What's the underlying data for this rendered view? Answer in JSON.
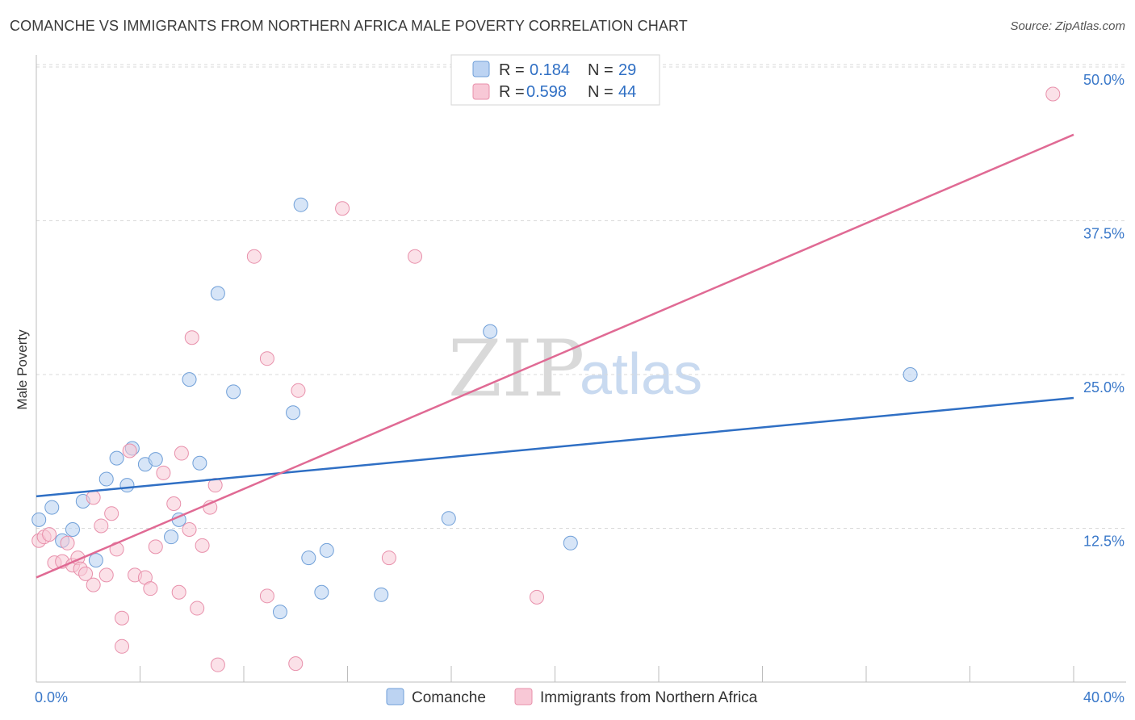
{
  "title": "COMANCHE VS IMMIGRANTS FROM NORTHERN AFRICA MALE POVERTY CORRELATION CHART",
  "source": "Source: ZipAtlas.com",
  "watermark": {
    "zip": "ZIP",
    "atlas": "atlas"
  },
  "colors": {
    "blue_fill": "#bcd3f2",
    "blue_stroke": "#6f9fd8",
    "blue_line": "#2f6fc4",
    "pink_fill": "#f8c8d6",
    "pink_stroke": "#e890ab",
    "pink_line": "#e06a94",
    "grid": "#d9d9d9",
    "tick_label": "#3a78c9"
  },
  "legend": {
    "rows": [
      {
        "series": "Comanche",
        "r_label": "R =",
        "r_value": "0.184",
        "n_label": "N =",
        "n_value": "29"
      },
      {
        "series": "Immigrants from Northern Africa",
        "r_label": "R =",
        "r_value": "0.598",
        "n_label": "N =",
        "n_value": "44"
      }
    ]
  },
  "chart_data": {
    "type": "scatter",
    "title": "COMANCHE VS IMMIGRANTS FROM NORTHERN AFRICA MALE POVERTY CORRELATION CHART",
    "xlabel": "",
    "ylabel": "Male Poverty",
    "xlim": [
      0,
      40
    ],
    "ylim": [
      0,
      50
    ],
    "x_tick_labels": [
      {
        "value": 0,
        "label": "0.0%"
      },
      {
        "value": 40,
        "label": "40.0%"
      }
    ],
    "y_tick_labels": [
      {
        "value": 12.5,
        "label": "12.5%"
      },
      {
        "value": 25,
        "label": "25.0%"
      },
      {
        "value": 37.5,
        "label": "37.5%"
      },
      {
        "value": 50,
        "label": "50.0%"
      }
    ],
    "series": [
      {
        "name": "Comanche",
        "color": "blue",
        "trend": {
          "x0": 0,
          "y0": 15.1,
          "x1": 40,
          "y1": 23.1
        },
        "points": [
          [
            0.1,
            13.2
          ],
          [
            0.6,
            14.2
          ],
          [
            1.0,
            11.5
          ],
          [
            1.4,
            12.4
          ],
          [
            1.8,
            14.7
          ],
          [
            2.3,
            9.9
          ],
          [
            2.7,
            16.5
          ],
          [
            3.1,
            18.2
          ],
          [
            3.5,
            16.0
          ],
          [
            3.7,
            19.0
          ],
          [
            4.2,
            17.7
          ],
          [
            4.6,
            18.1
          ],
          [
            5.2,
            11.8
          ],
          [
            5.5,
            13.2
          ],
          [
            5.9,
            24.6
          ],
          [
            6.3,
            17.8
          ],
          [
            7.0,
            31.6
          ],
          [
            7.6,
            23.6
          ],
          [
            9.4,
            5.7
          ],
          [
            9.9,
            21.9
          ],
          [
            10.2,
            38.8
          ],
          [
            10.5,
            10.1
          ],
          [
            11.0,
            7.3
          ],
          [
            11.2,
            10.7
          ],
          [
            13.3,
            7.1
          ],
          [
            15.9,
            13.3
          ],
          [
            17.5,
            28.5
          ],
          [
            20.6,
            11.3
          ],
          [
            33.7,
            25.0
          ]
        ]
      },
      {
        "name": "Immigrants from Northern Africa",
        "color": "pink",
        "trend": {
          "x0": 0,
          "y0": 8.5,
          "x1": 40,
          "y1": 44.5
        },
        "points": [
          [
            0.1,
            11.5
          ],
          [
            0.3,
            11.8
          ],
          [
            0.5,
            12.0
          ],
          [
            0.7,
            9.7
          ],
          [
            1.0,
            9.8
          ],
          [
            1.2,
            11.3
          ],
          [
            1.4,
            9.5
          ],
          [
            1.6,
            10.1
          ],
          [
            1.7,
            9.2
          ],
          [
            1.9,
            8.8
          ],
          [
            2.2,
            7.9
          ],
          [
            2.2,
            15.0
          ],
          [
            2.5,
            12.7
          ],
          [
            2.7,
            8.7
          ],
          [
            2.9,
            13.7
          ],
          [
            3.1,
            10.8
          ],
          [
            3.3,
            5.2
          ],
          [
            3.3,
            2.9
          ],
          [
            3.6,
            18.8
          ],
          [
            3.8,
            8.7
          ],
          [
            4.2,
            8.5
          ],
          [
            4.4,
            7.6
          ],
          [
            4.6,
            11.0
          ],
          [
            4.9,
            17.0
          ],
          [
            5.3,
            14.5
          ],
          [
            5.5,
            7.3
          ],
          [
            5.6,
            18.6
          ],
          [
            5.9,
            12.4
          ],
          [
            6.0,
            28.0
          ],
          [
            6.2,
            6.0
          ],
          [
            6.4,
            11.1
          ],
          [
            6.7,
            14.2
          ],
          [
            6.9,
            16.0
          ],
          [
            7.0,
            1.4
          ],
          [
            8.4,
            34.6
          ],
          [
            8.9,
            7.0
          ],
          [
            8.9,
            26.3
          ],
          [
            10.0,
            1.5
          ],
          [
            10.1,
            23.7
          ],
          [
            11.8,
            38.5
          ],
          [
            13.6,
            10.1
          ],
          [
            14.6,
            34.6
          ],
          [
            19.3,
            6.9
          ],
          [
            39.2,
            47.8
          ]
        ]
      }
    ]
  }
}
